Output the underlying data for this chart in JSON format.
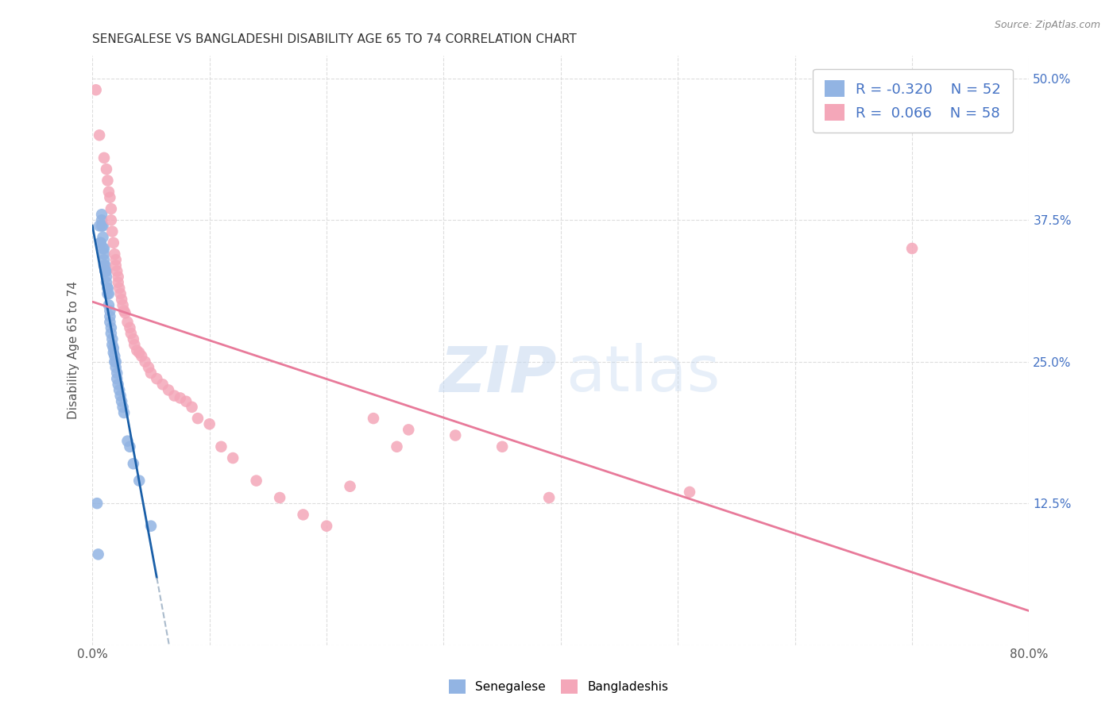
{
  "title": "SENEGALESE VS BANGLADESHI DISABILITY AGE 65 TO 74 CORRELATION CHART",
  "source": "Source: ZipAtlas.com",
  "ylabel": "Disability Age 65 to 74",
  "xlim": [
    0.0,
    0.8
  ],
  "ylim": [
    0.0,
    0.52
  ],
  "xticks": [
    0.0,
    0.1,
    0.2,
    0.3,
    0.4,
    0.5,
    0.6,
    0.7,
    0.8
  ],
  "xticklabels": [
    "0.0%",
    "",
    "",
    "",
    "",
    "",
    "",
    "",
    "80.0%"
  ],
  "ytick_positions": [
    0.0,
    0.125,
    0.25,
    0.375,
    0.5
  ],
  "yticklabels_right": [
    "",
    "12.5%",
    "25.0%",
    "37.5%",
    "50.0%"
  ],
  "legend_r_senegalese": "-0.320",
  "legend_n_senegalese": "52",
  "legend_r_bangladeshi": " 0.066",
  "legend_n_bangladeshi": "58",
  "senegalese_color": "#92b4e3",
  "bangladeshi_color": "#f4a7b9",
  "trendline_senegalese_color": "#1a5fa8",
  "trendline_bangladeshi_color": "#e87a9a",
  "trendline_dashed_color": "#aabbcc",
  "watermark_zip": "ZIP",
  "watermark_atlas": "atlas",
  "senegalese_x": [
    0.004,
    0.005,
    0.006,
    0.007,
    0.007,
    0.008,
    0.008,
    0.008,
    0.009,
    0.009,
    0.009,
    0.01,
    0.01,
    0.01,
    0.01,
    0.011,
    0.011,
    0.011,
    0.012,
    0.012,
    0.012,
    0.013,
    0.013,
    0.013,
    0.014,
    0.014,
    0.015,
    0.015,
    0.015,
    0.016,
    0.016,
    0.017,
    0.017,
    0.018,
    0.018,
    0.019,
    0.019,
    0.02,
    0.02,
    0.021,
    0.021,
    0.022,
    0.023,
    0.024,
    0.025,
    0.026,
    0.027,
    0.03,
    0.032,
    0.035,
    0.04,
    0.05
  ],
  "senegalese_y": [
    0.125,
    0.08,
    0.37,
    0.355,
    0.355,
    0.38,
    0.375,
    0.37,
    0.37,
    0.36,
    0.35,
    0.35,
    0.345,
    0.34,
    0.335,
    0.335,
    0.33,
    0.33,
    0.33,
    0.325,
    0.32,
    0.315,
    0.315,
    0.31,
    0.31,
    0.3,
    0.295,
    0.29,
    0.285,
    0.28,
    0.275,
    0.27,
    0.265,
    0.262,
    0.258,
    0.255,
    0.25,
    0.25,
    0.245,
    0.24,
    0.235,
    0.23,
    0.225,
    0.22,
    0.215,
    0.21,
    0.205,
    0.18,
    0.175,
    0.16,
    0.145,
    0.105
  ],
  "bangladeshi_x": [
    0.003,
    0.006,
    0.01,
    0.012,
    0.013,
    0.014,
    0.015,
    0.016,
    0.016,
    0.017,
    0.018,
    0.019,
    0.02,
    0.02,
    0.021,
    0.022,
    0.022,
    0.023,
    0.024,
    0.025,
    0.026,
    0.027,
    0.028,
    0.03,
    0.032,
    0.033,
    0.035,
    0.036,
    0.038,
    0.04,
    0.042,
    0.045,
    0.048,
    0.05,
    0.055,
    0.06,
    0.065,
    0.07,
    0.075,
    0.08,
    0.085,
    0.09,
    0.1,
    0.11,
    0.12,
    0.14,
    0.16,
    0.18,
    0.2,
    0.22,
    0.24,
    0.26,
    0.27,
    0.31,
    0.35,
    0.39,
    0.51,
    0.7
  ],
  "bangladeshi_y": [
    0.49,
    0.45,
    0.43,
    0.42,
    0.41,
    0.4,
    0.395,
    0.385,
    0.375,
    0.365,
    0.355,
    0.345,
    0.34,
    0.335,
    0.33,
    0.325,
    0.32,
    0.315,
    0.31,
    0.305,
    0.3,
    0.295,
    0.293,
    0.285,
    0.28,
    0.275,
    0.27,
    0.265,
    0.26,
    0.258,
    0.255,
    0.25,
    0.245,
    0.24,
    0.235,
    0.23,
    0.225,
    0.22,
    0.218,
    0.215,
    0.21,
    0.2,
    0.195,
    0.175,
    0.165,
    0.145,
    0.13,
    0.115,
    0.105,
    0.14,
    0.2,
    0.175,
    0.19,
    0.185,
    0.175,
    0.13,
    0.135,
    0.35
  ]
}
